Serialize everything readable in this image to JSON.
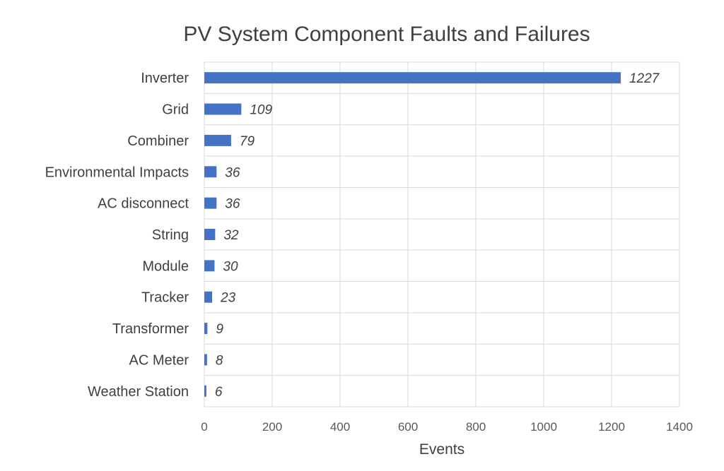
{
  "chart_data": {
    "type": "bar",
    "orientation": "horizontal",
    "title": "PV System Component Faults and Failures",
    "xlabel": "Events",
    "ylabel": "",
    "categories": [
      "Inverter",
      "Grid",
      "Combiner",
      "Environmental Impacts",
      "AC disconnect",
      "String",
      "Module",
      "Tracker",
      "Transformer",
      "AC Meter",
      "Weather Station"
    ],
    "values": [
      1227,
      109,
      79,
      36,
      36,
      32,
      30,
      23,
      9,
      8,
      6
    ],
    "xlim": [
      0,
      1400
    ],
    "xticks": [
      0,
      200,
      400,
      600,
      800,
      1000,
      1200,
      1400
    ],
    "grid": true,
    "legend": "none",
    "data_labels": true,
    "bar_color": "#4472c4"
  }
}
